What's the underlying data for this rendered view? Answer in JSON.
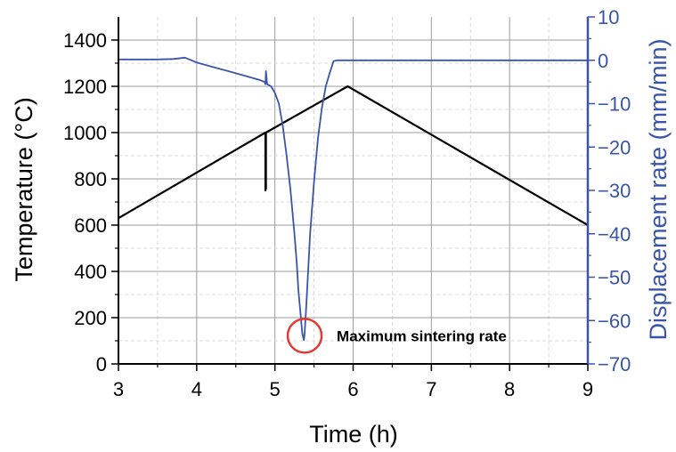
{
  "chart_data": {
    "type": "line",
    "xlabel": "Time (h)",
    "ylabel_left": "Temperature (°C)",
    "ylabel_right": "Displacement rate (mm/min)",
    "xlim": [
      3,
      9
    ],
    "ylim_left": [
      0,
      1500
    ],
    "ylim_right": [
      -70,
      10
    ],
    "x_ticks": [
      "3",
      "4",
      "5",
      "6",
      "7",
      "8",
      "9"
    ],
    "y_left_ticks": [
      "0",
      "200",
      "400",
      "600",
      "800",
      "1000",
      "1200",
      "1400"
    ],
    "y_right_ticks": [
      "10",
      "0",
      "-10",
      "-20",
      "-30",
      "-40",
      "-50",
      "-60",
      "-70"
    ],
    "grid": true,
    "series": [
      {
        "axis": "left",
        "color": "#000000",
        "x": [
          3.0,
          4.878,
          4.878,
          4.885,
          4.885,
          5.93,
          9.0
        ],
        "y": [
          630,
          1000,
          750,
          760,
          1000,
          1200,
          600
        ]
      },
      {
        "axis": "right",
        "color": "#3a55a8",
        "x": [
          3.0,
          3.5,
          3.7,
          3.85,
          4.0,
          4.2,
          4.4,
          4.6,
          4.8,
          4.87,
          4.88,
          4.885,
          4.89,
          4.9,
          4.95,
          5.0,
          5.05,
          5.1,
          5.15,
          5.2,
          5.25,
          5.28,
          5.3,
          5.33,
          5.35,
          5.37,
          5.38,
          5.4,
          5.42,
          5.45,
          5.5,
          5.55,
          5.6,
          5.65,
          5.7,
          5.75,
          5.8,
          5.9,
          6.0,
          7.0,
          8.0,
          9.0
        ],
        "y": [
          0.2,
          0.2,
          0.3,
          0.6,
          -0.5,
          -1.5,
          -2.5,
          -3.5,
          -4.5,
          -5.0,
          -5.5,
          -2.5,
          -3.5,
          -5.5,
          -6.0,
          -7.5,
          -10.0,
          -15.0,
          -22.0,
          -30.0,
          -40.0,
          -47.0,
          -53.0,
          -59.0,
          -63.0,
          -64.5,
          -63.0,
          -57.0,
          -50.0,
          -40.0,
          -28.0,
          -18.0,
          -11.0,
          -6.0,
          -3.0,
          -0.2,
          0.0,
          0.0,
          0.0,
          0.0,
          0.0,
          0.0
        ]
      }
    ],
    "annotation": {
      "text": "Maximum sintering rate",
      "x": 5.38,
      "y": -63.5,
      "axis": "right",
      "marker_color": "#e53935"
    }
  }
}
